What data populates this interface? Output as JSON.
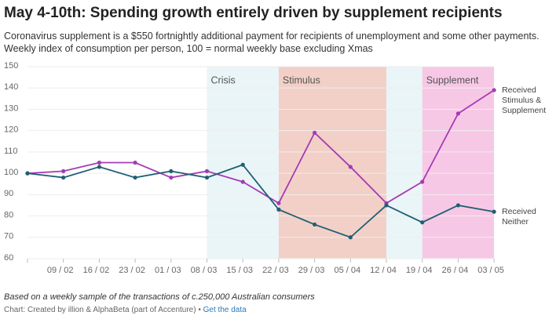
{
  "chart_data": {
    "type": "line",
    "title": "May 4-10th: Spending growth entirely driven by supplement recipients",
    "subtitle": [
      "Coronavirus supplement is a $550 fortnightly additional payment for recipients of unemployment and some other payments.",
      "Weekly index of consumption per person, 100 = normal weekly base excluding Xmas"
    ],
    "categories": [
      null,
      "09 / 02",
      "16 / 02",
      "23 / 02",
      "01 / 03",
      "08 / 03",
      "15 / 03",
      "22 / 03",
      "29 / 03",
      "05 / 04",
      "12 / 04",
      "19 / 04",
      "26 / 04",
      "03 / 05"
    ],
    "series": [
      {
        "name": "Received Stimulus & Supplement",
        "color": "#a53bb4",
        "values": [
          100,
          101,
          105,
          105,
          98,
          101,
          96,
          86,
          119,
          103,
          86,
          96,
          128,
          139
        ]
      },
      {
        "name": "Received Neither",
        "color": "#1f5f73",
        "values": [
          100,
          98,
          103,
          98,
          101,
          98,
          104,
          83,
          76,
          70,
          85,
          77,
          85,
          82
        ]
      }
    ],
    "shaded_regions": [
      {
        "label": "Crisis",
        "start": "08 / 03",
        "end": "22 / 03",
        "color": "#eaf5f8"
      },
      {
        "label": "Stimulus",
        "start": "22 / 03",
        "end": "12 / 04",
        "color": "#f2d0c7"
      },
      {
        "start": "12 / 04",
        "end": "19 / 04",
        "color": "#eaf5f8"
      },
      {
        "label": "Supplement",
        "start": "19 / 04",
        "end": "03 / 05",
        "color": "#f7c8e5"
      }
    ],
    "ylim": [
      60,
      150
    ],
    "yticks": [
      60,
      70,
      80,
      90,
      100,
      110,
      120,
      130,
      140,
      150
    ],
    "grid": true,
    "footer": {
      "note": "Based on a weekly sample of the transactions of c.250,000 Australian consumers",
      "credit": "Chart: Created by illion & AlphaBeta (part of Accenture) • ",
      "link": "Get the data"
    }
  }
}
